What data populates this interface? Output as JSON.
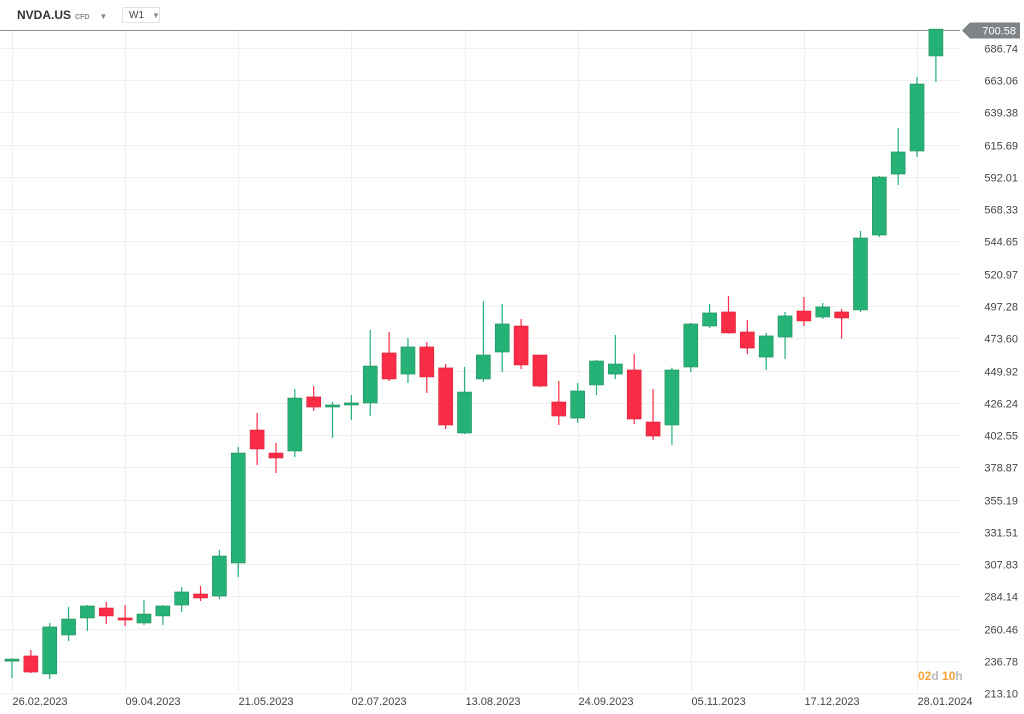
{
  "header": {
    "symbol": "NVDA.US",
    "instrument_type": "CFD",
    "timeframe": "W1"
  },
  "countdown": {
    "days": "02",
    "days_unit": "d",
    "hours": "10",
    "hours_unit": "h"
  },
  "colors": {
    "up": "#26b276",
    "down": "#fb2c45",
    "grid": "#eff1f1",
    "price_tag": "#7d8386",
    "countdown": "#f7a035"
  },
  "chart_data": {
    "type": "candlestick",
    "title": "NVDA.US",
    "interval": "W1",
    "last_price": "700.58",
    "y_ticks": [
      "686.74",
      "663.06",
      "639.38",
      "615.69",
      "592.01",
      "568.33",
      "544.65",
      "520.97",
      "497.28",
      "473.60",
      "449.92",
      "426.24",
      "402.55",
      "378.87",
      "355.19",
      "331.51",
      "307.83",
      "284.14",
      "260.46",
      "236.78",
      "213.10"
    ],
    "x_ticks": [
      {
        "index": 0,
        "label": "26.02.2023"
      },
      {
        "index": 6,
        "label": "09.04.2023"
      },
      {
        "index": 12,
        "label": "21.05.2023"
      },
      {
        "index": 18,
        "label": "02.07.2023"
      },
      {
        "index": 24,
        "label": "13.08.2023"
      },
      {
        "index": 30,
        "label": "24.09.2023"
      },
      {
        "index": 36,
        "label": "05.11.2023"
      },
      {
        "index": 42,
        "label": "17.12.2023"
      },
      {
        "index": 48,
        "label": "28.01.2024"
      }
    ],
    "ylim": [
      213.1,
      700.58
    ],
    "candles_ohlc": [
      [
        236.6,
        238.5,
        224.1,
        238.0
      ],
      [
        240.3,
        244.7,
        227.8,
        228.5
      ],
      [
        227.1,
        264.5,
        223.4,
        261.6
      ],
      [
        255.7,
        276.3,
        251.3,
        267.4
      ],
      [
        268.2,
        277.7,
        258.6,
        277.0
      ],
      [
        275.5,
        279.9,
        263.8,
        269.7
      ],
      [
        268.2,
        277.7,
        262.3,
        266.7
      ],
      [
        264.5,
        281.4,
        263.0,
        271.1
      ],
      [
        269.7,
        277.7,
        263.0,
        277.0
      ],
      [
        277.7,
        290.9,
        272.6,
        287.3
      ],
      [
        285.8,
        291.7,
        280.7,
        282.9
      ],
      [
        284.3,
        318.1,
        282.1,
        313.7
      ],
      [
        308.6,
        393.7,
        298.3,
        389.3
      ],
      [
        406.2,
        418.7,
        380.5,
        392.3
      ],
      [
        389.3,
        396.7,
        374.7,
        385.7
      ],
      [
        390.8,
        436.3,
        386.4,
        429.7
      ],
      [
        430.5,
        438.5,
        420.2,
        423.1
      ],
      [
        423.1,
        426.8,
        400.4,
        424.6
      ],
      [
        424.6,
        431.9,
        413.6,
        426.1
      ],
      [
        426.1,
        479.7,
        416.5,
        453.2
      ],
      [
        462.8,
        478.2,
        442.2,
        443.7
      ],
      [
        447.3,
        473.8,
        440.7,
        467.2
      ],
      [
        467.2,
        470.8,
        433.4,
        445.2
      ],
      [
        451.8,
        454.7,
        407.0,
        409.9
      ],
      [
        404.0,
        452.5,
        403.3,
        434.1
      ],
      [
        443.7,
        500.9,
        441.5,
        461.3
      ],
      [
        463.5,
        498.7,
        448.8,
        484.1
      ],
      [
        482.6,
        487.7,
        451.0,
        454.0
      ],
      [
        461.3,
        461.3,
        437.8,
        438.5
      ],
      [
        426.8,
        442.2,
        409.9,
        416.5
      ],
      [
        415.0,
        440.7,
        411.4,
        434.9
      ],
      [
        439.3,
        457.7,
        431.9,
        456.9
      ],
      [
        447.3,
        476.0,
        443.7,
        454.7
      ],
      [
        450.3,
        462.0,
        410.6,
        414.3
      ],
      [
        412.1,
        436.3,
        398.9,
        401.8
      ],
      [
        409.9,
        452.0,
        395.2,
        450.3
      ],
      [
        452.5,
        484.8,
        448.8,
        484.1
      ],
      [
        482.6,
        498.7,
        481.1,
        492.2
      ],
      [
        492.9,
        504.6,
        477.0,
        477.5
      ],
      [
        478.2,
        487.0,
        462.0,
        466.4
      ],
      [
        459.8,
        477.5,
        450.3,
        475.3
      ],
      [
        474.5,
        492.9,
        458.4,
        490.0
      ],
      [
        493.6,
        503.9,
        482.6,
        486.3
      ],
      [
        489.2,
        499.5,
        487.7,
        496.6
      ],
      [
        492.9,
        495.1,
        473.1,
        488.5
      ],
      [
        494.4,
        552.4,
        492.9,
        547.2
      ],
      [
        549.4,
        592.7,
        547.9,
        592.0
      ],
      [
        594.2,
        628.0,
        586.2,
        610.4
      ],
      [
        611.1,
        665.4,
        606.7,
        660.3
      ],
      [
        680.9,
        700.6,
        661.8,
        700.58
      ]
    ]
  }
}
